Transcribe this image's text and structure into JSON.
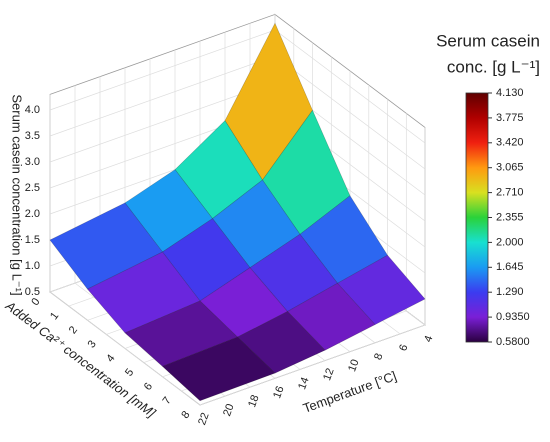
{
  "chart_data": {
    "type": "surface",
    "z_label": "Serum casein concentration [g L⁻¹]",
    "ca_label": "Added Ca²⁺ concentration [mM]",
    "t_label": "Temperature [°C]",
    "calcium": [
      0,
      2,
      4,
      6,
      8
    ],
    "temperature": [
      4,
      8,
      12,
      16,
      22
    ],
    "z": [
      [
        4.13,
        2.6,
        2.0,
        1.7,
        1.5
      ],
      [
        3.0,
        2.0,
        1.6,
        1.3,
        1.1
      ],
      [
        1.9,
        1.5,
        1.2,
        0.9,
        0.8
      ],
      [
        1.3,
        1.1,
        0.9,
        0.75,
        0.7
      ],
      [
        1.0,
        0.85,
        0.7,
        0.6,
        0.58
      ]
    ],
    "calim": [
      0,
      8
    ],
    "caticks": [
      0,
      1,
      2,
      3,
      4,
      5,
      6,
      7,
      8
    ],
    "tlim": [
      4,
      22
    ],
    "tticks": [
      4,
      6,
      8,
      10,
      12,
      14,
      16,
      18,
      20,
      22
    ],
    "zlim": [
      0.5,
      4.3
    ],
    "zticks": [
      0.5,
      {
        "value": 1,
        "label": "1.0"
      },
      1.5,
      {
        "value": 2,
        "label": "2.0"
      },
      2.5,
      {
        "value": 3,
        "label": "3.0"
      },
      3.5,
      {
        "value": 4,
        "label": "4.0"
      }
    ],
    "colorbar_title": [
      "Serum casein",
      "conc. [g L⁻¹]"
    ],
    "clim": [
      0.58,
      4.13
    ],
    "colorbar_ticks": [
      {
        "value": 4.13,
        "label": "4.130"
      },
      {
        "value": 3.775,
        "label": "3.775"
      },
      {
        "value": 3.42,
        "label": "3.420"
      },
      {
        "value": 3.065,
        "label": "3.065"
      },
      {
        "value": 2.71,
        "label": "2.710"
      },
      {
        "value": 2.355,
        "label": "2.355"
      },
      {
        "value": 2,
        "label": "2.000"
      },
      {
        "value": 1.645,
        "label": "1.645"
      },
      {
        "value": 1.29,
        "label": "1.290"
      },
      {
        "value": 0.935,
        "label": "0.9350"
      },
      {
        "value": 0.58,
        "label": "0.5800"
      }
    ],
    "colormap": [
      "#2a0040",
      "#7a1fd6",
      "#3b3cf0",
      "#1a9bf2",
      "#18e0d0",
      "#2ad23a",
      "#d8e020",
      "#ff9a10",
      "#f02010",
      "#b00000",
      "#600000"
    ],
    "grid": true
  }
}
